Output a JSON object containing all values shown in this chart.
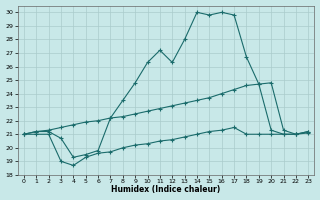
{
  "xlabel": "Humidex (Indice chaleur)",
  "bg_color": "#c8e8e8",
  "grid_color": "#aacccc",
  "line_color": "#1a6b6b",
  "xlim": [
    -0.5,
    23.5
  ],
  "ylim": [
    18,
    30.5
  ],
  "xticks": [
    0,
    1,
    2,
    3,
    4,
    5,
    6,
    7,
    8,
    9,
    10,
    11,
    12,
    13,
    14,
    15,
    16,
    17,
    18,
    19,
    20,
    21,
    22,
    23
  ],
  "yticks": [
    18,
    19,
    20,
    21,
    22,
    23,
    24,
    25,
    26,
    27,
    28,
    29,
    30
  ],
  "line_bottom_x": [
    0,
    1,
    2,
    3,
    4,
    5,
    6,
    7,
    8,
    9,
    10,
    11,
    12,
    13,
    14,
    15,
    16,
    17,
    18,
    19,
    20,
    21,
    22,
    23
  ],
  "line_bottom_y": [
    21.0,
    21.0,
    21.0,
    19.0,
    18.7,
    19.3,
    19.6,
    19.7,
    20.0,
    20.2,
    20.3,
    20.5,
    20.6,
    20.8,
    21.0,
    21.2,
    21.3,
    21.5,
    21.0,
    21.0,
    21.0,
    21.0,
    21.0,
    21.2
  ],
  "line_mid_x": [
    0,
    1,
    2,
    3,
    4,
    5,
    6,
    7,
    8,
    9,
    10,
    11,
    12,
    13,
    14,
    15,
    16,
    17,
    18,
    19,
    20,
    21,
    22,
    23
  ],
  "line_mid_y": [
    21.0,
    21.2,
    21.3,
    21.5,
    21.7,
    21.9,
    22.0,
    22.2,
    22.3,
    22.5,
    22.7,
    22.9,
    23.1,
    23.3,
    23.5,
    23.7,
    24.0,
    24.3,
    24.6,
    24.7,
    24.8,
    21.3,
    21.0,
    21.1
  ],
  "line_top_x": [
    0,
    1,
    2,
    3,
    4,
    5,
    6,
    7,
    8,
    9,
    10,
    11,
    12,
    13,
    14,
    15,
    16,
    17,
    18,
    19,
    20,
    21,
    22,
    23
  ],
  "line_top_y": [
    21.0,
    21.2,
    21.2,
    20.7,
    19.3,
    19.5,
    19.8,
    22.2,
    23.5,
    24.8,
    26.3,
    27.2,
    26.3,
    28.0,
    30.0,
    29.8,
    30.0,
    29.8,
    26.7,
    24.7,
    21.3,
    21.0,
    21.0,
    21.2
  ]
}
